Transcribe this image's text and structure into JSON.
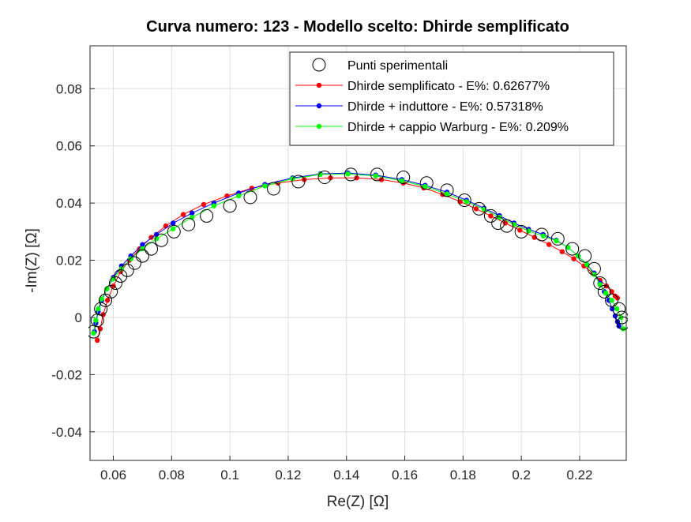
{
  "chart_data": {
    "type": "scatter",
    "title": "Curva numero: 123 - Modello scelto: Dhirde semplificato",
    "xlabel": "Re(Z) [Ω]",
    "ylabel": "-Im(Z) [Ω]",
    "xlim": [
      0.052,
      0.236
    ],
    "ylim": [
      -0.05,
      0.095
    ],
    "xticks": [
      0.06,
      0.08,
      0.1,
      0.12,
      0.14,
      0.16,
      0.18,
      0.2,
      0.22
    ],
    "xtick_labels": [
      "0.06",
      "0.08",
      "0.1",
      "0.12",
      "0.14",
      "0.16",
      "0.18",
      "0.2",
      "0.22"
    ],
    "yticks": [
      -0.04,
      -0.02,
      0,
      0.02,
      0.04,
      0.06,
      0.08
    ],
    "ytick_labels": [
      "-0.04",
      "-0.02",
      "0",
      "0.02",
      "0.04",
      "0.06",
      "0.08"
    ],
    "grid": true,
    "legend_position": "top-right",
    "series": [
      {
        "name": "Punti sperimentali",
        "kind": "markers",
        "color": "#000000",
        "x": [
          0.0532,
          0.0545,
          0.0557,
          0.0573,
          0.0592,
          0.0608,
          0.0625,
          0.0648,
          0.0673,
          0.07,
          0.073,
          0.0765,
          0.0808,
          0.0858,
          0.092,
          0.1,
          0.107,
          0.115,
          0.1235,
          0.1325,
          0.1415,
          0.1505,
          0.1595,
          0.1675,
          0.1745,
          0.1805,
          0.1855,
          0.1895,
          0.192,
          0.195,
          0.2,
          0.207,
          0.2125,
          0.2175,
          0.2218,
          0.225,
          0.227,
          0.2285,
          0.231,
          0.2335,
          0.2345,
          0.235
        ],
        "y": [
          -0.005,
          -0.001,
          0.003,
          0.006,
          0.009,
          0.012,
          0.0145,
          0.0165,
          0.019,
          0.0215,
          0.024,
          0.027,
          0.03,
          0.0325,
          0.0355,
          0.039,
          0.042,
          0.045,
          0.0475,
          0.049,
          0.05,
          0.05,
          0.049,
          0.047,
          0.0445,
          0.041,
          0.038,
          0.0355,
          0.033,
          0.032,
          0.03,
          0.029,
          0.0275,
          0.024,
          0.0215,
          0.017,
          0.012,
          0.009,
          0.006,
          0.003,
          0.0,
          -0.002
        ]
      },
      {
        "name": "Dhirde semplificato - E%: 0.62677%",
        "kind": "line-dots",
        "color": "#ff0000",
        "x": [
          0.0545,
          0.0555,
          0.0565,
          0.058,
          0.06,
          0.0625,
          0.0655,
          0.069,
          0.073,
          0.078,
          0.084,
          0.091,
          0.099,
          0.1075,
          0.1165,
          0.1255,
          0.1345,
          0.1435,
          0.152,
          0.1595,
          0.1665,
          0.173,
          0.179,
          0.1845,
          0.1895,
          0.1945,
          0.1995,
          0.2045,
          0.2095,
          0.214,
          0.218,
          0.2215,
          0.2245,
          0.227,
          0.2292,
          0.231,
          0.2322,
          0.233
        ],
        "y": [
          -0.008,
          -0.004,
          0.001,
          0.006,
          0.011,
          0.016,
          0.02,
          0.024,
          0.028,
          0.032,
          0.036,
          0.0395,
          0.0425,
          0.0452,
          0.047,
          0.0482,
          0.0488,
          0.0488,
          0.0482,
          0.047,
          0.0453,
          0.043,
          0.0405,
          0.038,
          0.0355,
          0.033,
          0.0305,
          0.028,
          0.0255,
          0.023,
          0.0205,
          0.018,
          0.0155,
          0.013,
          0.011,
          0.009,
          0.0075,
          0.0068
        ]
      },
      {
        "name": "Dhirde + induttore - E%: 0.57318%",
        "kind": "line-dots",
        "color": "#0000ff",
        "x": [
          0.0535,
          0.054,
          0.0548,
          0.056,
          0.0578,
          0.06,
          0.0628,
          0.066,
          0.07,
          0.0748,
          0.0805,
          0.087,
          0.0945,
          0.103,
          0.112,
          0.1215,
          0.131,
          0.1405,
          0.15,
          0.159,
          0.167,
          0.1745,
          0.1812,
          0.1872,
          0.1925,
          0.1975,
          0.2025,
          0.2075,
          0.212,
          0.216,
          0.2195,
          0.2225,
          0.225,
          0.227,
          0.2285,
          0.23,
          0.2312,
          0.2322,
          0.233,
          0.2335
        ],
        "y": [
          -0.005,
          -0.002,
          0.002,
          0.006,
          0.01,
          0.014,
          0.018,
          0.0215,
          0.0255,
          0.029,
          0.033,
          0.0365,
          0.04,
          0.0435,
          0.0465,
          0.0488,
          0.0502,
          0.0505,
          0.0498,
          0.0482,
          0.0462,
          0.0438,
          0.041,
          0.0382,
          0.0356,
          0.033,
          0.0308,
          0.029,
          0.027,
          0.0245,
          0.0215,
          0.0185,
          0.0155,
          0.012,
          0.009,
          0.006,
          0.003,
          0.0005,
          -0.0015,
          -0.003
        ]
      },
      {
        "name": "Dhirde + cappio Warburg - E%: 0.209%",
        "kind": "line-dots",
        "color": "#00ff00",
        "x": [
          0.0532,
          0.054,
          0.0548,
          0.056,
          0.0578,
          0.06,
          0.0628,
          0.066,
          0.07,
          0.0748,
          0.0805,
          0.087,
          0.0945,
          0.103,
          0.112,
          0.1215,
          0.131,
          0.1405,
          0.15,
          0.159,
          0.167,
          0.1745,
          0.1812,
          0.1872,
          0.1925,
          0.1975,
          0.2025,
          0.2075,
          0.212,
          0.216,
          0.2195,
          0.2225,
          0.225,
          0.227,
          0.229,
          0.231,
          0.2328,
          0.2342,
          0.235
        ],
        "y": [
          -0.0055,
          -0.001,
          0.003,
          0.0065,
          0.01,
          0.0135,
          0.017,
          0.0205,
          0.024,
          0.0275,
          0.031,
          0.035,
          0.039,
          0.0425,
          0.046,
          0.0485,
          0.05,
          0.0502,
          0.0495,
          0.0478,
          0.0458,
          0.0432,
          0.0405,
          0.0378,
          0.035,
          0.0325,
          0.0302,
          0.0285,
          0.0268,
          0.0245,
          0.0215,
          0.0185,
          0.015,
          0.0115,
          0.0085,
          0.006,
          0.003,
          0.0,
          -0.004
        ]
      }
    ]
  }
}
